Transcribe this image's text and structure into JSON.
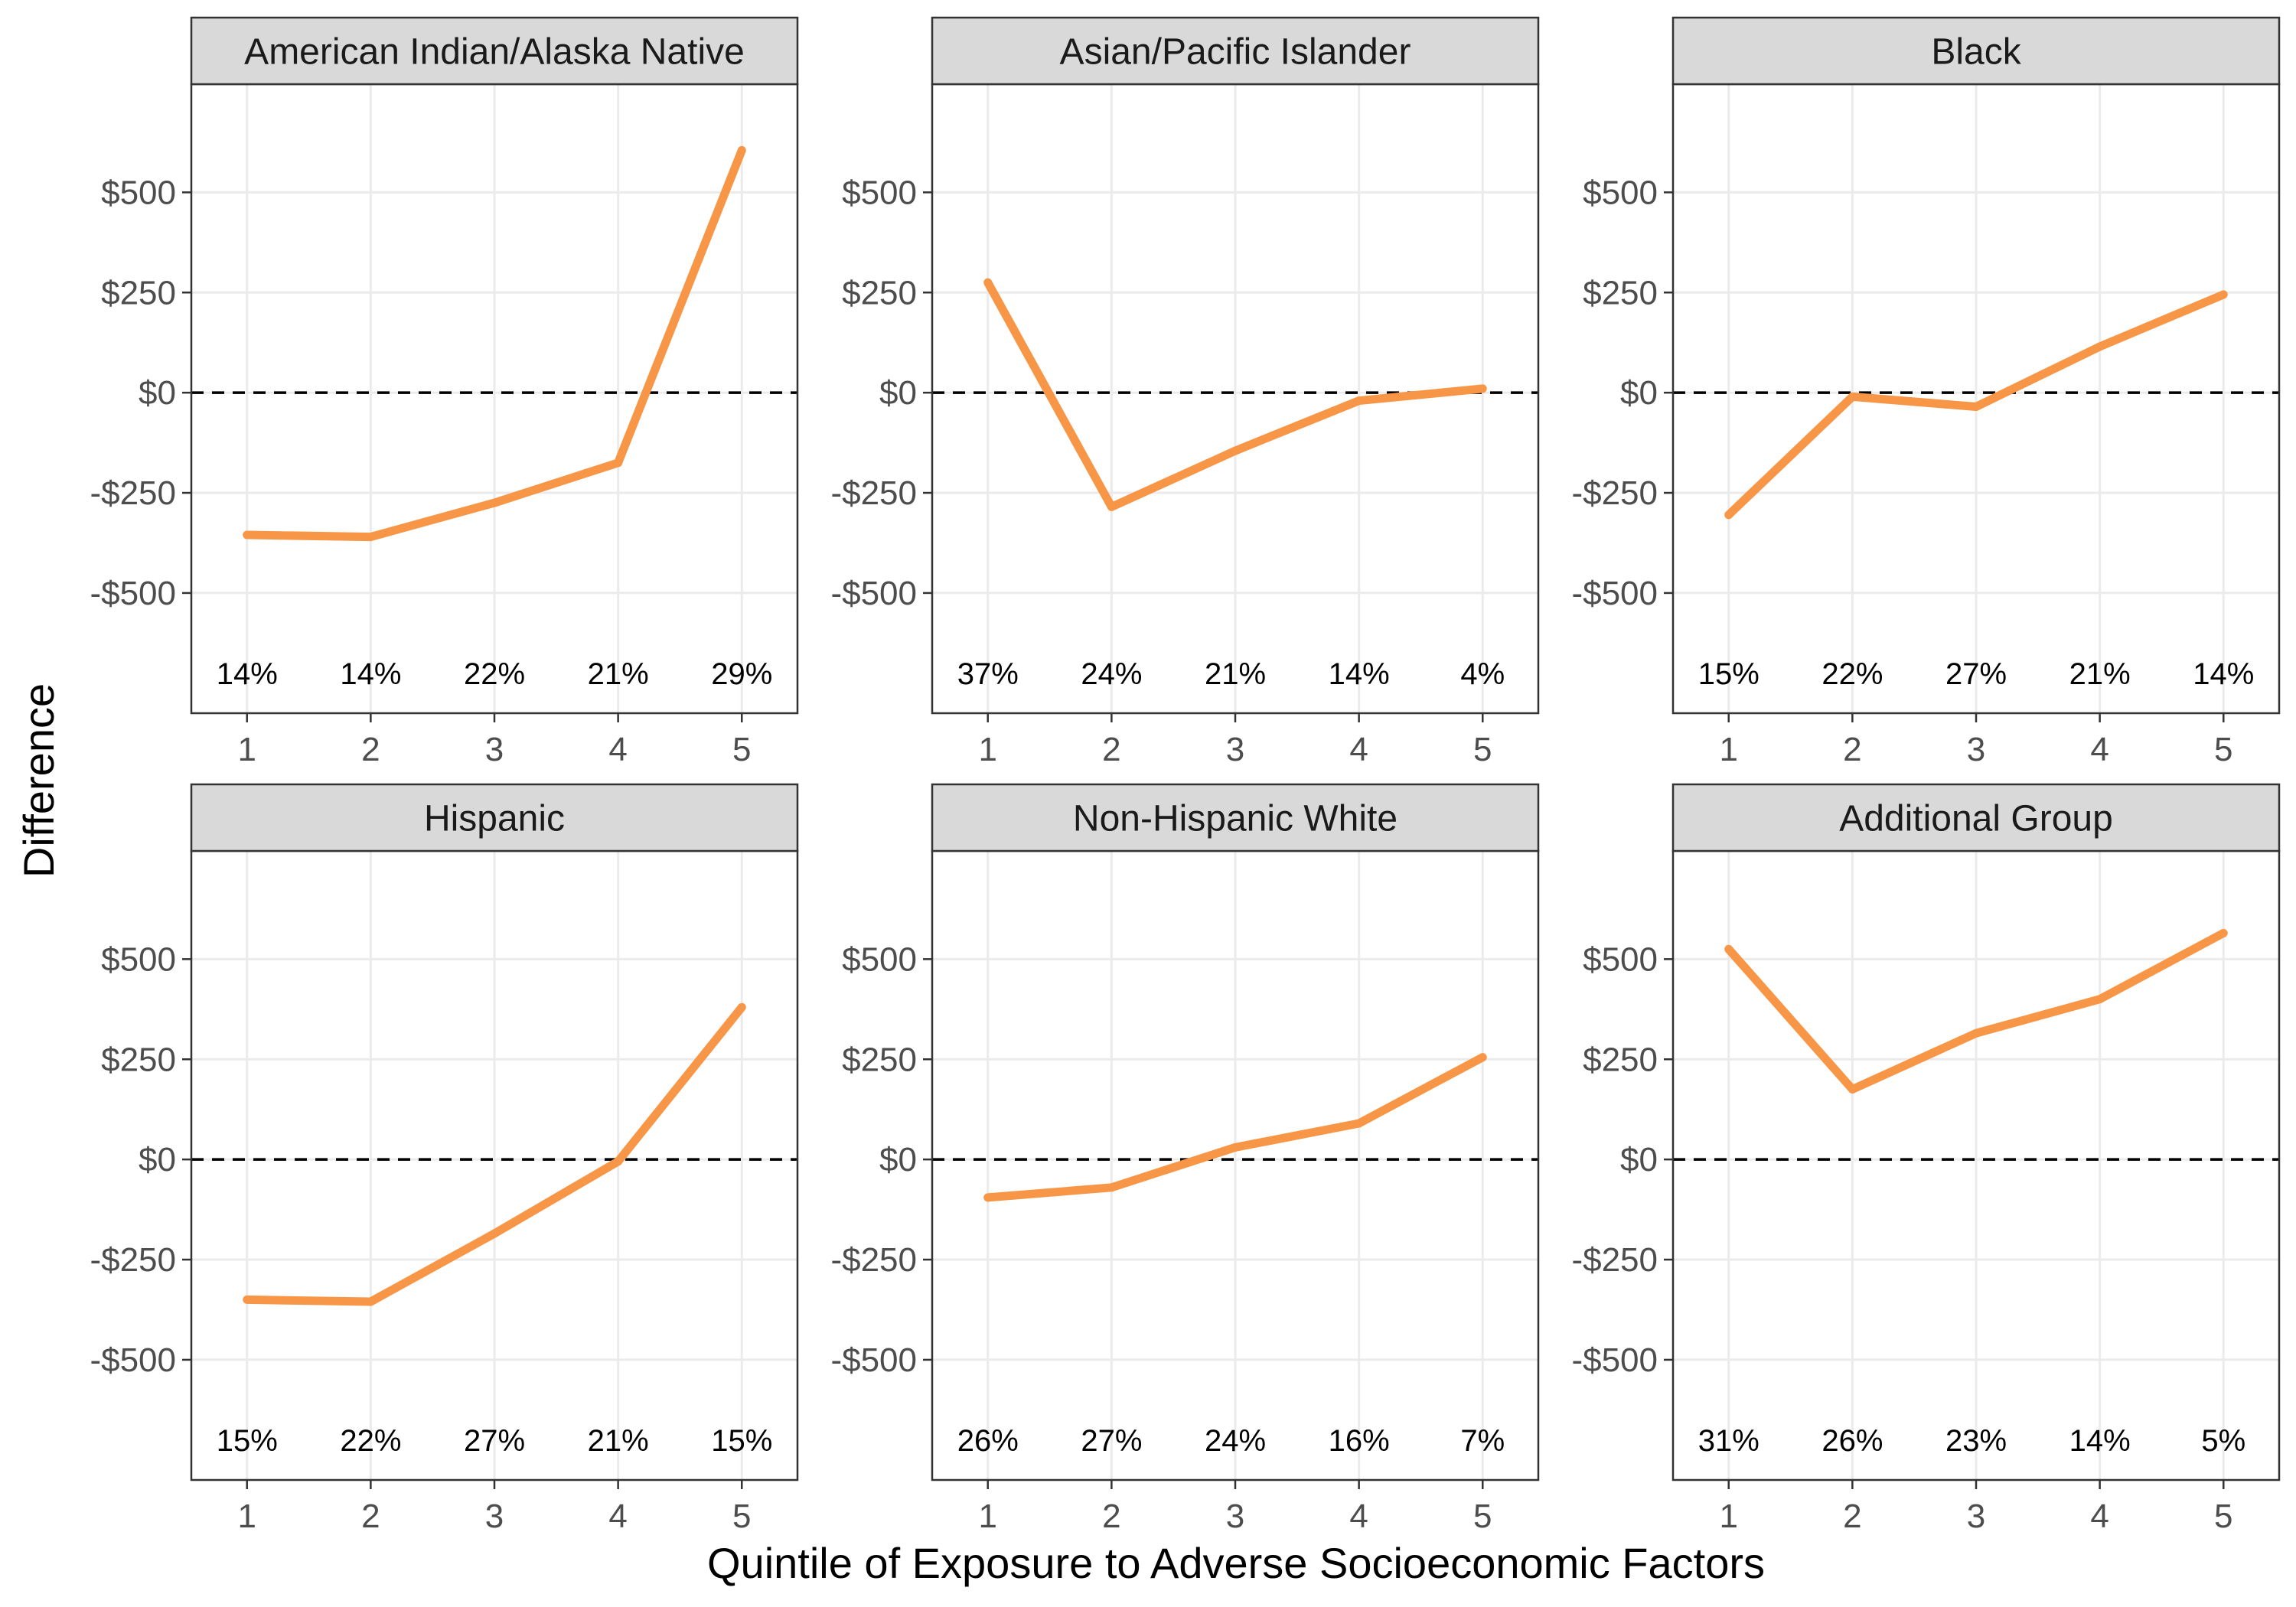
{
  "chart_data": {
    "type": "line",
    "xlabel": "Quintile of Exposure to Adverse Socioeconomic Factors",
    "ylabel": "Difference",
    "x": [
      1,
      2,
      3,
      4,
      5
    ],
    "x_tick_labels": [
      "1",
      "2",
      "3",
      "4",
      "5"
    ],
    "y_ticks": [
      500,
      250,
      0,
      -250,
      -500
    ],
    "y_tick_labels": [
      "$500",
      "$250",
      "$0",
      "-$250",
      "-$500"
    ],
    "ylim": [
      -800,
      770
    ],
    "xlim": [
      0.55,
      5.45
    ],
    "reference_line": {
      "y": 0,
      "style": "dashed",
      "color": "#000000"
    },
    "line_color": "#f79646",
    "grid": true,
    "layout": {
      "rows": 2,
      "cols": 3
    },
    "panels": [
      {
        "title": "American Indian/Alaska Native",
        "values": [
          -355,
          -360,
          -275,
          -175,
          605
        ],
        "shares": [
          "14%",
          "14%",
          "22%",
          "21%",
          "29%"
        ]
      },
      {
        "title": "Asian/Pacific Islander",
        "values": [
          275,
          -285,
          -145,
          -20,
          10
        ],
        "shares": [
          "37%",
          "24%",
          "21%",
          "14%",
          "4%"
        ]
      },
      {
        "title": "Black",
        "values": [
          -305,
          -10,
          -35,
          115,
          245
        ],
        "shares": [
          "15%",
          "22%",
          "27%",
          "21%",
          "14%"
        ]
      },
      {
        "title": "Hispanic",
        "values": [
          -350,
          -355,
          -185,
          -5,
          380
        ],
        "shares": [
          "15%",
          "22%",
          "27%",
          "21%",
          "15%"
        ]
      },
      {
        "title": "Non-Hispanic White",
        "values": [
          -95,
          -70,
          30,
          90,
          255
        ],
        "shares": [
          "26%",
          "27%",
          "24%",
          "16%",
          "7%"
        ]
      },
      {
        "title": "Additional Group",
        "values": [
          525,
          175,
          315,
          400,
          565
        ],
        "shares": [
          "31%",
          "26%",
          "23%",
          "14%",
          "5%"
        ]
      }
    ]
  }
}
